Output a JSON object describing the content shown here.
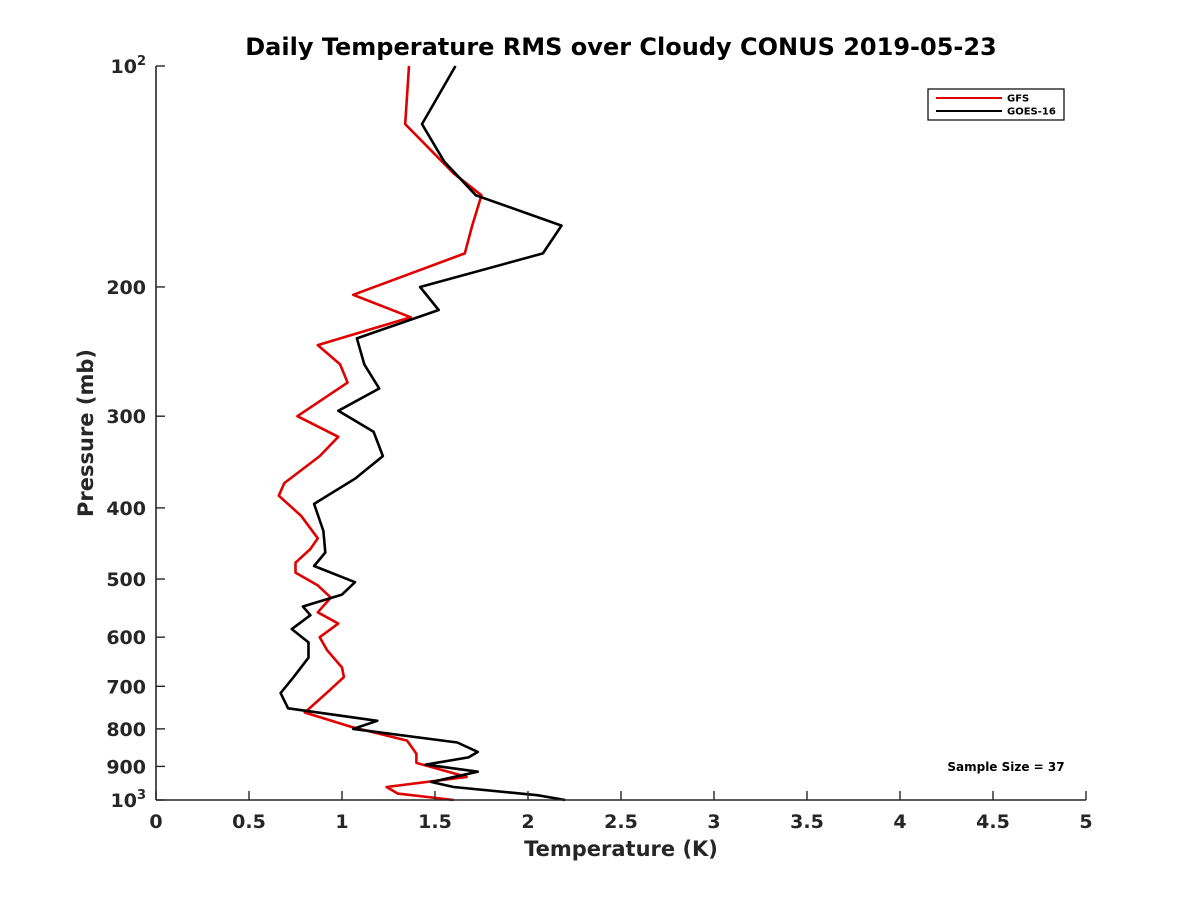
{
  "chart_data": {
    "type": "line",
    "title": "Daily Temperature RMS over Cloudy CONUS 2019-05-23",
    "xlabel": "Temperature (K)",
    "ylabel": "Pressure (mb)",
    "xlim": [
      0,
      5
    ],
    "ylim": [
      100,
      1000
    ],
    "y_scale": "log",
    "y_reversed": true,
    "grid": false,
    "legend_position": "top-right",
    "x_ticks": [
      0,
      0.5,
      1,
      1.5,
      2,
      2.5,
      3,
      3.5,
      4,
      4.5,
      5
    ],
    "x_tick_labels": [
      "0",
      "0.5",
      "1",
      "1.5",
      "2",
      "2.5",
      "3",
      "3.5",
      "4",
      "4.5",
      "5"
    ],
    "y_ticks": [
      {
        "value": 100,
        "base": "10",
        "exp": "2",
        "label": ""
      },
      {
        "value": 200,
        "label": "200"
      },
      {
        "value": 300,
        "label": "300"
      },
      {
        "value": 400,
        "label": "400"
      },
      {
        "value": 500,
        "label": "500"
      },
      {
        "value": 600,
        "label": "600"
      },
      {
        "value": 700,
        "label": "700"
      },
      {
        "value": 800,
        "label": "800"
      },
      {
        "value": 900,
        "label": "900"
      },
      {
        "value": 1000,
        "base": "10",
        "exp": "3",
        "label": ""
      }
    ],
    "annotation": "Sample Size = 37",
    "series": [
      {
        "name": "GFS",
        "color": "#e00000",
        "points": [
          [
            1.36,
            100
          ],
          [
            1.34,
            120
          ],
          [
            1.6,
            140
          ],
          [
            1.75,
            150
          ],
          [
            1.7,
            165
          ],
          [
            1.66,
            180
          ],
          [
            1.06,
            205
          ],
          [
            1.37,
            220
          ],
          [
            0.87,
            240
          ],
          [
            0.99,
            255
          ],
          [
            1.03,
            270
          ],
          [
            0.76,
            300
          ],
          [
            0.98,
            320
          ],
          [
            0.88,
            340
          ],
          [
            0.69,
            370
          ],
          [
            0.66,
            385
          ],
          [
            0.78,
            410
          ],
          [
            0.87,
            440
          ],
          [
            0.83,
            455
          ],
          [
            0.75,
            475
          ],
          [
            0.75,
            490
          ],
          [
            0.87,
            510
          ],
          [
            0.94,
            530
          ],
          [
            0.87,
            555
          ],
          [
            0.98,
            575
          ],
          [
            0.88,
            600
          ],
          [
            0.92,
            625
          ],
          [
            1.0,
            660
          ],
          [
            1.01,
            680
          ],
          [
            0.93,
            710
          ],
          [
            0.8,
            760
          ],
          [
            1.05,
            795
          ],
          [
            1.35,
            830
          ],
          [
            1.4,
            865
          ],
          [
            1.4,
            890
          ],
          [
            1.67,
            930
          ],
          [
            1.24,
            960
          ],
          [
            1.3,
            980
          ],
          [
            1.6,
            1000
          ]
        ]
      },
      {
        "name": "GOES-16",
        "color": "#000000",
        "points": [
          [
            1.61,
            100
          ],
          [
            1.43,
            120
          ],
          [
            1.55,
            135
          ],
          [
            1.72,
            150
          ],
          [
            2.18,
            165
          ],
          [
            2.08,
            180
          ],
          [
            1.42,
            200
          ],
          [
            1.52,
            215
          ],
          [
            1.08,
            235
          ],
          [
            1.12,
            255
          ],
          [
            1.2,
            275
          ],
          [
            0.98,
            295
          ],
          [
            1.17,
            315
          ],
          [
            1.22,
            340
          ],
          [
            1.07,
            365
          ],
          [
            0.85,
            395
          ],
          [
            0.9,
            430
          ],
          [
            0.91,
            460
          ],
          [
            0.85,
            480
          ],
          [
            1.07,
            505
          ],
          [
            1.0,
            525
          ],
          [
            0.79,
            545
          ],
          [
            0.83,
            560
          ],
          [
            0.73,
            585
          ],
          [
            0.82,
            610
          ],
          [
            0.82,
            640
          ],
          [
            0.74,
            680
          ],
          [
            0.67,
            715
          ],
          [
            0.71,
            750
          ],
          [
            1.19,
            780
          ],
          [
            1.06,
            800
          ],
          [
            1.62,
            835
          ],
          [
            1.73,
            860
          ],
          [
            1.68,
            875
          ],
          [
            1.45,
            895
          ],
          [
            1.73,
            915
          ],
          [
            1.48,
            945
          ],
          [
            1.6,
            960
          ],
          [
            2.05,
            985
          ],
          [
            2.2,
            1000
          ]
        ]
      }
    ]
  }
}
